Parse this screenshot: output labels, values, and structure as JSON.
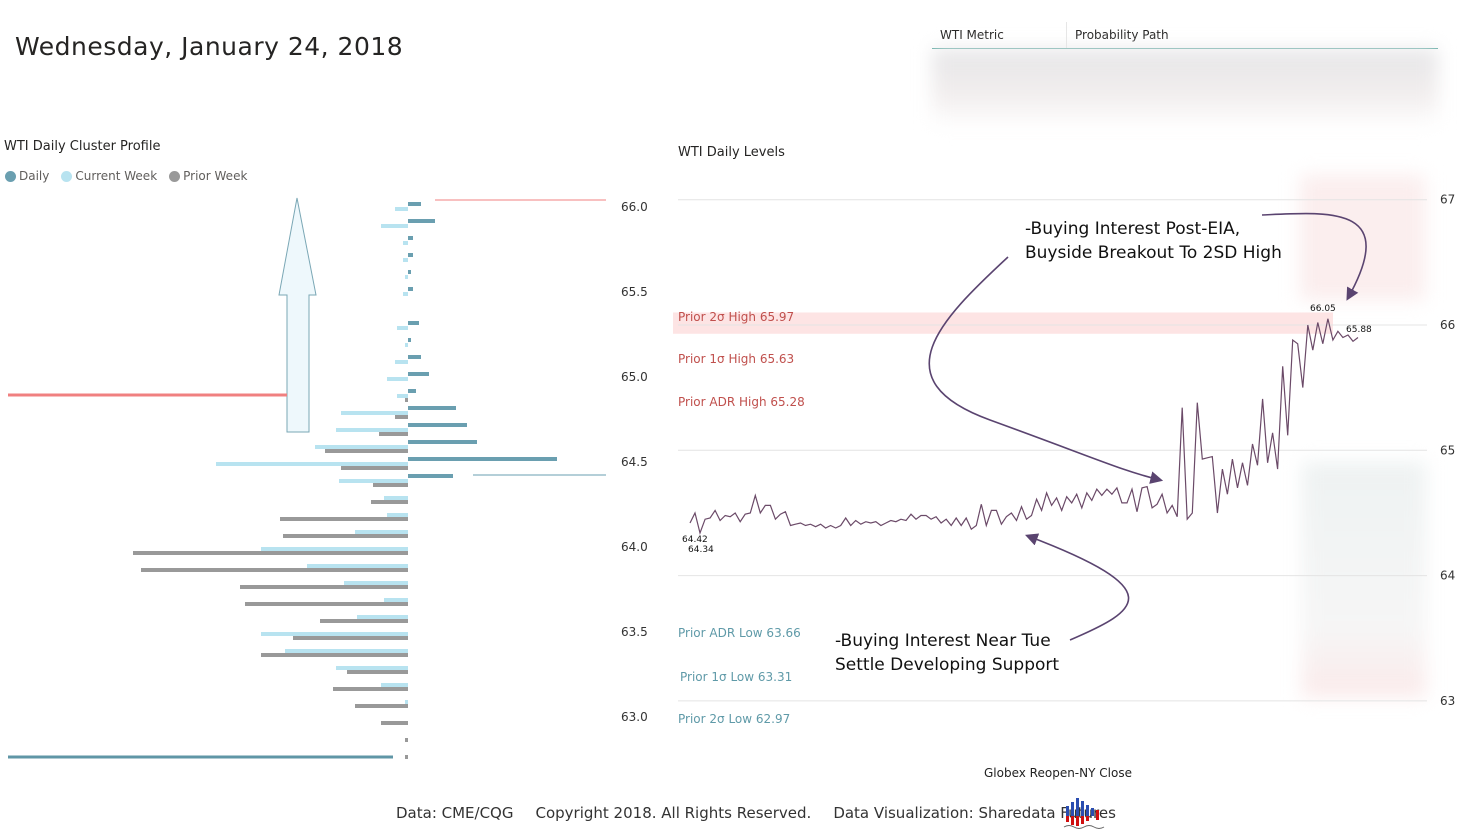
{
  "header": {
    "date": "Wednesday, January 24, 2018"
  },
  "table": {
    "columns": [
      "WTI Metric",
      "Probability Path"
    ]
  },
  "footer": {
    "data_source": "Data: CME/CQG",
    "copyright": "Copyright 2018. All Rights Reserved.",
    "viz": "Data Visualization: Sharedata Futures",
    "logo_icon": "sharedata-logo-icon"
  },
  "colors": {
    "daily": "#6a9fb0",
    "current_week": "#b8e3f0",
    "prior_week": "#999999",
    "red": "#f08080",
    "line": "#6b4a68",
    "band": "#fde4e4",
    "high_text": "#c0504d",
    "low_text": "#5f9aa8"
  },
  "annotations": {
    "top": [
      "-Buying Interest Post-EIA,",
      "Buyside Breakout To 2SD High"
    ],
    "bottom": [
      "-Buying Interest Near Tue",
      "Settle Developing Support"
    ]
  },
  "chart_data": [
    {
      "type": "bar",
      "title": "WTI Daily Cluster Profile",
      "orientation": "horizontal",
      "legend": [
        "Daily",
        "Current Week",
        "Prior Week"
      ],
      "legend_placement": "top-left",
      "ylim": [
        62.75,
        66.05
      ],
      "y_ticks": [
        "66.0",
        "65.5",
        "65.0",
        "64.5",
        "64.0",
        "63.5",
        "63.0"
      ],
      "prices": [
        66.0,
        65.9,
        65.8,
        65.7,
        65.6,
        65.5,
        65.4,
        65.3,
        65.2,
        65.1,
        65.0,
        64.9,
        64.8,
        64.7,
        64.6,
        64.5,
        64.4,
        64.3,
        64.2,
        64.1,
        64.0,
        63.9,
        63.8,
        63.7,
        63.6,
        63.5,
        63.4,
        63.3,
        63.2,
        63.1,
        63.0,
        62.9,
        62.8
      ],
      "series": [
        {
          "name": "Daily",
          "values": [
            13,
            27,
            5,
            5,
            3,
            5,
            0,
            11,
            3,
            13,
            21,
            8,
            48,
            59,
            69,
            149,
            45,
            0,
            0,
            0,
            0,
            0,
            0,
            0,
            0,
            0,
            0,
            0,
            0,
            0,
            0,
            0,
            0
          ]
        },
        {
          "name": "Current Week",
          "values": [
            13,
            27,
            5,
            5,
            3,
            5,
            0,
            11,
            3,
            13,
            21,
            11,
            67,
            72,
            93,
            192,
            69,
            24,
            21,
            53,
            147,
            101,
            64,
            24,
            51,
            147,
            123,
            72,
            27,
            3,
            0,
            0,
            0
          ]
        },
        {
          "name": "Prior Week",
          "values": [
            0,
            0,
            0,
            0,
            0,
            0,
            0,
            0,
            0,
            0,
            0,
            3,
            13,
            29,
            83,
            67,
            35,
            37,
            128,
            125,
            275,
            267,
            168,
            163,
            88,
            115,
            147,
            61,
            75,
            53,
            27,
            3,
            3
          ]
        }
      ]
    },
    {
      "type": "line",
      "title": "WTI Daily Levels",
      "xlabel": "Globex Reopen-NY Close",
      "ylim": [
        62.8,
        67.0
      ],
      "y_ticks": [
        "67",
        "66",
        "65",
        "64",
        "63"
      ],
      "levels": [
        {
          "label": "Prior 2σ High 65.97",
          "value": 65.97,
          "kind": "high"
        },
        {
          "label": "Prior 1σ High 65.63",
          "value": 65.63,
          "kind": "high"
        },
        {
          "label": "Prior ADR High 65.28",
          "value": 65.28,
          "kind": "high"
        },
        {
          "label": "Prior ADR Low 63.66",
          "value": 63.66,
          "kind": "low"
        },
        {
          "label": "Prior 1σ Low 63.31",
          "value": 63.31,
          "kind": "low"
        },
        {
          "label": "Prior 2σ Low 62.97",
          "value": 62.97,
          "kind": "low"
        }
      ],
      "point_labels": [
        {
          "text": "64.42",
          "value": 64.42
        },
        {
          "text": "64.34",
          "value": 64.34
        },
        {
          "text": "66.05",
          "value": 66.05
        },
        {
          "text": "65.88",
          "value": 65.88
        }
      ],
      "values": [
        64.42,
        64.5,
        64.34,
        64.45,
        64.46,
        64.52,
        64.44,
        64.48,
        64.47,
        64.5,
        64.43,
        64.49,
        64.5,
        64.64,
        64.5,
        64.56,
        64.56,
        64.45,
        64.49,
        64.51,
        64.4,
        64.41,
        64.42,
        64.4,
        64.41,
        64.39,
        64.41,
        64.38,
        64.4,
        64.38,
        64.4,
        64.46,
        64.4,
        64.44,
        64.41,
        64.43,
        64.42,
        64.43,
        64.4,
        64.42,
        64.44,
        64.43,
        64.45,
        64.44,
        64.49,
        64.45,
        64.48,
        64.48,
        64.45,
        64.47,
        64.42,
        64.45,
        64.4,
        64.46,
        64.4,
        64.46,
        64.37,
        64.4,
        64.57,
        64.4,
        64.52,
        64.52,
        64.41,
        64.47,
        64.5,
        64.44,
        64.55,
        64.45,
        64.48,
        64.61,
        64.52,
        64.66,
        64.56,
        64.62,
        64.52,
        64.63,
        64.58,
        64.65,
        64.54,
        64.66,
        64.6,
        64.69,
        64.64,
        64.69,
        64.65,
        64.7,
        64.58,
        64.58,
        64.69,
        64.51,
        64.7,
        64.71,
        64.54,
        64.57,
        64.65,
        64.5,
        64.56,
        64.47,
        65.34,
        64.45,
        64.5,
        65.38,
        64.93,
        64.94,
        64.95,
        64.5,
        64.85,
        64.65,
        64.93,
        64.7,
        64.9,
        64.72,
        65.05,
        64.88,
        65.41,
        64.9,
        65.14,
        64.85,
        65.67,
        65.12,
        65.88,
        65.85,
        65.5,
        66.0,
        65.8,
        66.02,
        65.85,
        66.05,
        65.88,
        65.95,
        65.9,
        65.92,
        65.87,
        65.9
      ]
    }
  ]
}
